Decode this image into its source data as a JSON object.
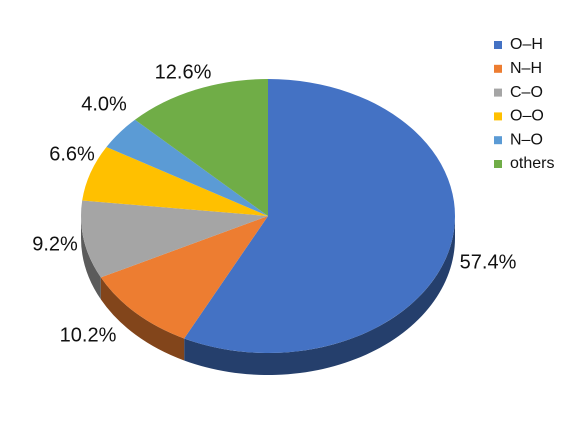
{
  "chart_data": {
    "type": "pie",
    "categories": [
      "O–H",
      "N–H",
      "C–O",
      "O–O",
      "N–O",
      "others"
    ],
    "values": [
      57.4,
      10.2,
      9.2,
      6.6,
      4.0,
      12.6
    ],
    "value_labels": [
      "57.4%",
      "10.2%",
      "9.2%",
      "6.6%",
      "4.0%",
      "12.6%"
    ],
    "colors": [
      "#4472c4",
      "#ed7d31",
      "#a5a5a5",
      "#ffc000",
      "#5b9bd5",
      "#70ad47"
    ],
    "legend": "right"
  }
}
